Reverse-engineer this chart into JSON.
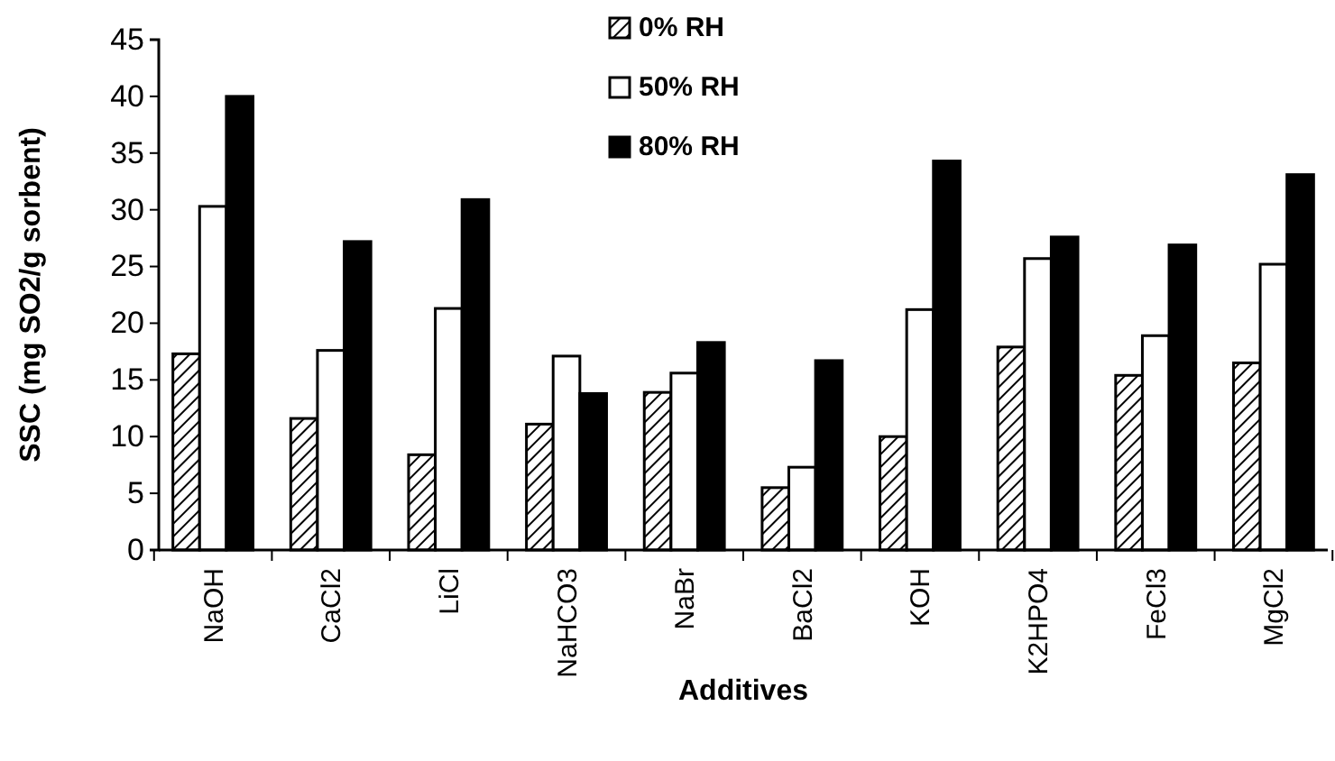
{
  "chart_data": {
    "type": "bar",
    "xlabel": "Additives",
    "ylabel": "SSC (mg SO2/g sorbent)",
    "categories": [
      "NaOH",
      "CaCl2",
      "LiCl",
      "NaHCO3",
      "NaBr",
      "BaCl2",
      "KOH",
      "K2HPO4",
      "FeCl3",
      "MgCl2"
    ],
    "series": [
      {
        "name": "0% RH",
        "color": "#000000",
        "values": [
          17.3,
          11.6,
          8.4,
          11.1,
          13.9,
          5.5,
          10.0,
          17.9,
          15.4,
          16.5
        ]
      },
      {
        "name": "50% RH",
        "color": "#ffffff",
        "values": [
          30.3,
          17.6,
          21.3,
          17.1,
          15.6,
          7.3,
          21.2,
          25.7,
          18.9,
          25.2
        ]
      },
      {
        "name": "80% RH",
        "color": "#000000",
        "values": [
          40.0,
          27.2,
          30.9,
          13.8,
          18.3,
          16.7,
          34.3,
          27.6,
          26.9,
          33.1
        ]
      }
    ],
    "ylim": [
      0,
      45
    ],
    "yticks": [
      0,
      5,
      10,
      15,
      20,
      25,
      30,
      35,
      40,
      45
    ],
    "grid": false,
    "legend": "top"
  }
}
